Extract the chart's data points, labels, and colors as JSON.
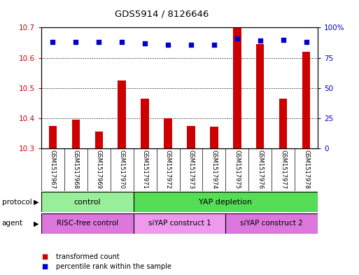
{
  "title": "GDS5914 / 8126646",
  "samples": [
    "GSM1517967",
    "GSM1517968",
    "GSM1517969",
    "GSM1517970",
    "GSM1517971",
    "GSM1517972",
    "GSM1517973",
    "GSM1517974",
    "GSM1517975",
    "GSM1517976",
    "GSM1517977",
    "GSM1517978"
  ],
  "bar_values": [
    10.375,
    10.395,
    10.355,
    10.525,
    10.465,
    10.4,
    10.375,
    10.373,
    10.7,
    10.645,
    10.465,
    10.62
  ],
  "percentile_values": [
    88,
    88,
    88,
    88,
    87,
    86,
    86,
    86,
    91,
    89,
    90,
    88
  ],
  "ylim_left": [
    10.3,
    10.7
  ],
  "ylim_right": [
    0,
    100
  ],
  "yticks_left": [
    10.3,
    10.4,
    10.5,
    10.6,
    10.7
  ],
  "yticks_right": [
    0,
    25,
    50,
    75,
    100
  ],
  "bar_color": "#cc0000",
  "dot_color": "#0000cc",
  "grid_color": "#000000",
  "protocol_groups": [
    {
      "label": "control",
      "start": 0,
      "end": 3,
      "color": "#99ee99"
    },
    {
      "label": "YAP depletion",
      "start": 4,
      "end": 11,
      "color": "#55dd55"
    }
  ],
  "agent_groups": [
    {
      "label": "RISC-free control",
      "start": 0,
      "end": 3,
      "color": "#dd77dd"
    },
    {
      "label": "siYAP construct 1",
      "start": 4,
      "end": 7,
      "color": "#ee99ee"
    },
    {
      "label": "siYAP construct 2",
      "start": 8,
      "end": 11,
      "color": "#dd77dd"
    }
  ],
  "legend_items": [
    {
      "label": "transformed count",
      "color": "#cc0000"
    },
    {
      "label": "percentile rank within the sample",
      "color": "#0000cc"
    }
  ],
  "label_protocol": "protocol",
  "label_agent": "agent",
  "bg_color": "#ffffff",
  "plot_bg": "#ffffff",
  "axis_color_left": "#cc0000",
  "axis_color_right": "#0000cc",
  "sample_bg": "#cccccc",
  "bar_width": 0.35
}
